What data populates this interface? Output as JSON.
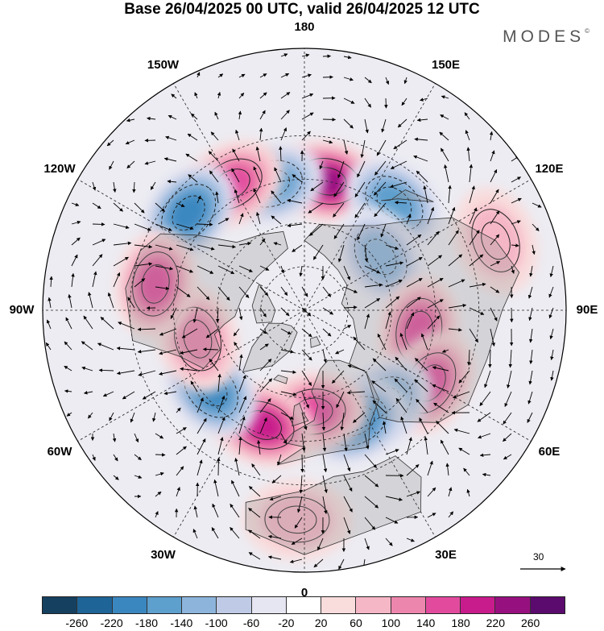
{
  "title": "Base 26/04/2025 00 UTC, valid 26/04/2025 12 UTC",
  "brand": {
    "name": "MODES",
    "mark": "©"
  },
  "map": {
    "projection": "north polar stereographic",
    "longitude_labels": [
      {
        "text": "180",
        "lon": 180
      },
      {
        "text": "150E",
        "lon": 150
      },
      {
        "text": "120E",
        "lon": 120
      },
      {
        "text": "90E",
        "lon": 90
      },
      {
        "text": "60E",
        "lon": 60
      },
      {
        "text": "30E",
        "lon": 30
      },
      {
        "text": "0",
        "lon": 0
      },
      {
        "text": "30W",
        "lon": -30
      },
      {
        "text": "60W",
        "lon": -60
      },
      {
        "text": "90W",
        "lon": -90
      },
      {
        "text": "120W",
        "lon": -120
      },
      {
        "text": "150W",
        "lon": -150
      }
    ],
    "latitude_circles": [
      30,
      45,
      60,
      75
    ],
    "anomaly_centers": [
      {
        "lon": 170,
        "lat": 45,
        "value": 230
      },
      {
        "lon": -165,
        "lat": 45,
        "value": -150
      },
      {
        "lon": -150,
        "lat": 40,
        "value": 150
      },
      {
        "lon": -130,
        "lat": 38,
        "value": -180
      },
      {
        "lon": 140,
        "lat": 42,
        "value": -170
      },
      {
        "lon": 125,
        "lat": 58,
        "value": -110
      },
      {
        "lon": 110,
        "lat": 20,
        "value": 80
      },
      {
        "lon": 80,
        "lat": 50,
        "value": 140
      },
      {
        "lon": 60,
        "lat": 40,
        "value": 170
      },
      {
        "lon": 40,
        "lat": 48,
        "value": -160
      },
      {
        "lon": 25,
        "lat": 48,
        "value": -190
      },
      {
        "lon": 5,
        "lat": 55,
        "value": 150
      },
      {
        "lon": -20,
        "lat": 48,
        "value": 180
      },
      {
        "lon": -50,
        "lat": 48,
        "value": -200
      },
      {
        "lon": -75,
        "lat": 52,
        "value": 100
      },
      {
        "lon": -100,
        "lat": 38,
        "value": 160
      },
      {
        "lon": -2,
        "lat": 18,
        "value": 80
      }
    ]
  },
  "vector_scale": {
    "label": "30"
  },
  "colorbar": {
    "colors": [
      "#15405f",
      "#1e6497",
      "#3a87c0",
      "#5d9fcd",
      "#8db5dc",
      "#bfcbe6",
      "#e6e6f2",
      "#ffffff",
      "#f9dcdc",
      "#f5b6c6",
      "#ed86ad",
      "#e24b9d",
      "#c81b8c",
      "#97107f",
      "#5b0a6e"
    ],
    "tick_labels": [
      "-260",
      "-220",
      "-180",
      "-140",
      "-100",
      "-60",
      "-20",
      "20",
      "60",
      "100",
      "140",
      "180",
      "220",
      "260"
    ]
  }
}
